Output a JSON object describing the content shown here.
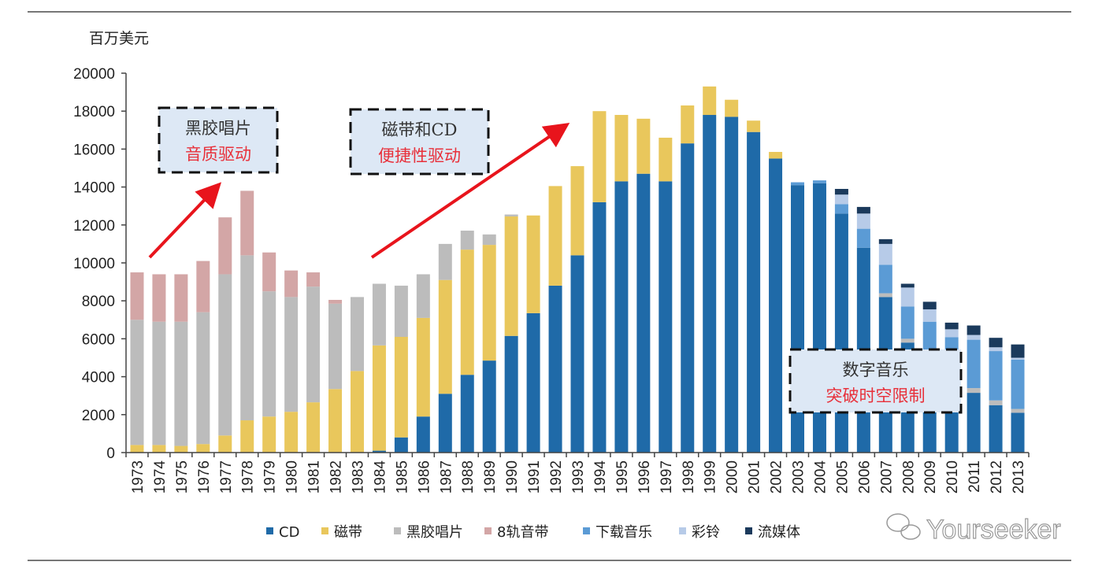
{
  "chart_data": {
    "type": "bar",
    "stacked": true,
    "title": "",
    "xlabel": "",
    "ylabel": "百万美元",
    "ylim": [
      0,
      20000
    ],
    "yticks": [
      0,
      2000,
      4000,
      6000,
      8000,
      10000,
      12000,
      14000,
      16000,
      18000,
      20000
    ],
    "grid": false,
    "legend_position": "bottom",
    "categories": [
      "1973",
      "1974",
      "1975",
      "1976",
      "1977",
      "1978",
      "1979",
      "1980",
      "1981",
      "1982",
      "1983",
      "1984",
      "1985",
      "1986",
      "1987",
      "1988",
      "1989",
      "1990",
      "1991",
      "1992",
      "1993",
      "1994",
      "1995",
      "1996",
      "1997",
      "1998",
      "1999",
      "2000",
      "2001",
      "2002",
      "2003",
      "2004",
      "2005",
      "2006",
      "2007",
      "2008",
      "2009",
      "2010",
      "2011",
      "2012",
      "2013"
    ],
    "series": [
      {
        "name": "CD",
        "color": "#1f6aa8",
        "values": [
          0,
          0,
          0,
          0,
          0,
          0,
          0,
          0,
          0,
          0,
          0,
          100,
          800,
          1900,
          3100,
          4100,
          4850,
          6150,
          7350,
          8800,
          10400,
          13200,
          14300,
          14700,
          14300,
          16300,
          17800,
          17700,
          16900,
          15500,
          14100,
          14200,
          12600,
          10800,
          8200,
          5800,
          4300,
          3400,
          3150,
          2500,
          2100
        ]
      },
      {
        "name": "磁带",
        "color": "#e9c75c",
        "values": [
          400,
          400,
          350,
          450,
          900,
          1700,
          1900,
          2150,
          2650,
          3350,
          4300,
          5550,
          5300,
          5200,
          6000,
          6600,
          6100,
          6300,
          5150,
          5250,
          4700,
          4800,
          3500,
          2900,
          2300,
          2000,
          1500,
          900,
          600,
          350,
          0,
          0,
          0,
          0,
          0,
          0,
          0,
          0,
          0,
          0,
          0
        ]
      },
      {
        "name": "黑胶唱片",
        "color": "#bcbcbc",
        "values": [
          6600,
          6500,
          6550,
          6950,
          8500,
          8700,
          6600,
          6050,
          6100,
          4500,
          3900,
          3250,
          2700,
          2300,
          1900,
          1000,
          550,
          100,
          0,
          0,
          0,
          0,
          0,
          0,
          0,
          0,
          0,
          0,
          0,
          0,
          0,
          0,
          0,
          0,
          200,
          200,
          150,
          150,
          250,
          250,
          200
        ]
      },
      {
        "name": "8轨音带",
        "color": "#d3a6a6",
        "values": [
          2500,
          2500,
          2500,
          2700,
          3000,
          3400,
          2050,
          1400,
          750,
          200,
          0,
          0,
          0,
          0,
          0,
          0,
          0,
          0,
          0,
          0,
          0,
          0,
          0,
          0,
          0,
          0,
          0,
          0,
          0,
          0,
          0,
          0,
          0,
          0,
          0,
          0,
          0,
          0,
          0,
          0,
          0
        ]
      },
      {
        "name": "下载音乐",
        "color": "#5b9bd5",
        "values": [
          0,
          0,
          0,
          0,
          0,
          0,
          0,
          0,
          0,
          0,
          0,
          0,
          0,
          0,
          0,
          0,
          0,
          0,
          0,
          0,
          0,
          0,
          0,
          0,
          0,
          0,
          0,
          0,
          0,
          0,
          150,
          150,
          500,
          1000,
          1500,
          1700,
          2450,
          2530,
          2550,
          2600,
          2600
        ]
      },
      {
        "name": "彩铃",
        "color": "#b7cbe8",
        "values": [
          0,
          0,
          0,
          0,
          0,
          0,
          0,
          0,
          0,
          0,
          0,
          0,
          0,
          0,
          0,
          0,
          0,
          0,
          0,
          0,
          0,
          0,
          0,
          0,
          0,
          0,
          0,
          0,
          0,
          0,
          0,
          0,
          500,
          800,
          1100,
          1000,
          650,
          420,
          250,
          200,
          100
        ]
      },
      {
        "name": "流媒体",
        "color": "#1b3a5c",
        "values": [
          0,
          0,
          0,
          0,
          0,
          0,
          0,
          0,
          0,
          0,
          0,
          0,
          0,
          0,
          0,
          0,
          0,
          0,
          0,
          0,
          0,
          0,
          0,
          0,
          0,
          0,
          0,
          0,
          0,
          0,
          0,
          0,
          300,
          350,
          250,
          200,
          400,
          350,
          500,
          500,
          700
        ]
      }
    ],
    "annotations": [
      {
        "line1": "黑胶唱片",
        "line2": "音质驱动"
      },
      {
        "line1": "磁带和CD",
        "line2": "便捷性驱动"
      },
      {
        "line1": "数字音乐",
        "line2": "突破时空限制"
      }
    ],
    "annotation_colors": {
      "line1": "#333333",
      "line2": "#e8303a",
      "box_fill": "#dde8f5",
      "arrow": "#e8141c"
    }
  },
  "watermark": "Yourseeker"
}
